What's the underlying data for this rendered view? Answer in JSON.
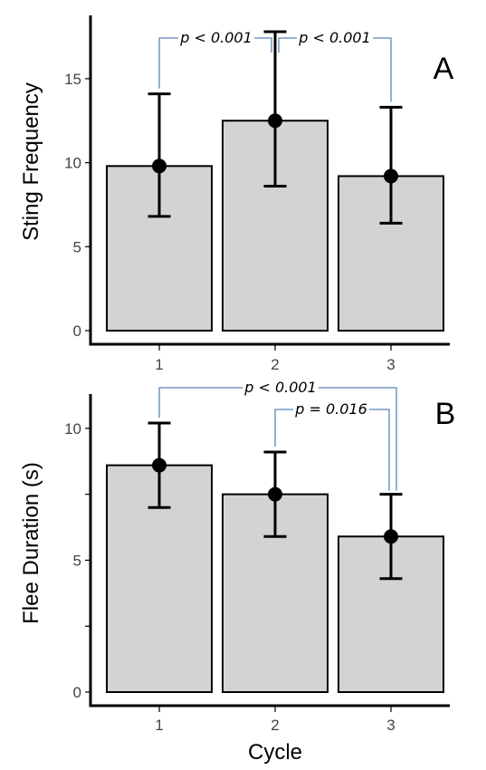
{
  "chart_data": [
    {
      "type": "bar",
      "panel_label": "A",
      "categories": [
        "1",
        "2",
        "3"
      ],
      "values": [
        9.8,
        12.5,
        9.2
      ],
      "error_low": [
        6.8,
        8.6,
        6.4
      ],
      "error_high": [
        14.1,
        17.8,
        13.3
      ],
      "ylabel": "Sting Frequency",
      "xlabel": "",
      "ylim": [
        0,
        18.5
      ],
      "yticks": [
        0,
        5,
        10,
        15
      ],
      "grid": false,
      "comparisons": [
        {
          "from": 0,
          "to": 1,
          "label": "p < 0.001"
        },
        {
          "from": 1,
          "to": 2,
          "label": "p < 0.001"
        }
      ]
    },
    {
      "type": "bar",
      "panel_label": "B",
      "categories": [
        "1",
        "2",
        "3"
      ],
      "values": [
        8.6,
        7.5,
        5.9
      ],
      "error_low": [
        7.0,
        5.9,
        4.3
      ],
      "error_high": [
        10.2,
        9.1,
        7.5
      ],
      "ylabel": "Flee Duration (s)",
      "xlabel": "Cycle",
      "ylim": [
        0,
        11.3
      ],
      "yticks": [
        0,
        5,
        10
      ],
      "minor_yticks": [
        2.5,
        7.5
      ],
      "grid": false,
      "comparisons": [
        {
          "from": 0,
          "to": 2,
          "label": "p < 0.001"
        },
        {
          "from": 1,
          "to": 2,
          "label": "p = 0.016"
        }
      ]
    }
  ]
}
